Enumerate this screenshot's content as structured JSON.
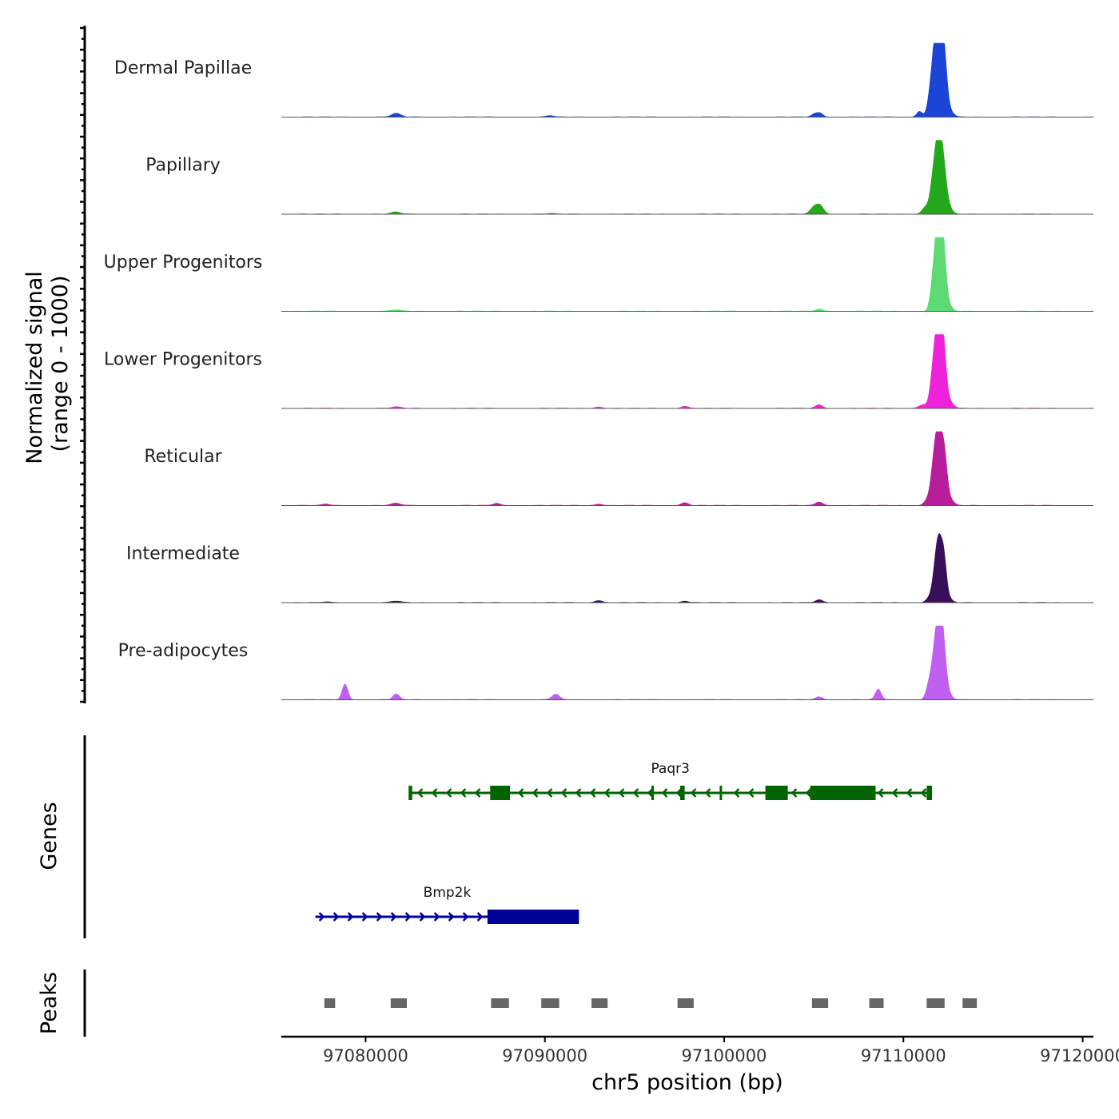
{
  "chart_data": {
    "type": "genome-browser-coverage",
    "chromosome": "chr5",
    "xlim": [
      97075300,
      97120600
    ],
    "xlabel": "chr5 position (bp)",
    "xticks": [
      97080000,
      97090000,
      97100000,
      97110000,
      97120000
    ],
    "xtick_labels": [
      "97080000",
      "97090000",
      "97100000",
      "97110000",
      "97120000"
    ],
    "ylabel_line1": "Normalized signal",
    "ylabel_line2": "(range 0 - 1000)",
    "genes_label": "Genes",
    "peaks_label": "Peaks",
    "tracks": [
      {
        "name": "Dermal Papillae",
        "color": "#1a45d6",
        "peaks": [
          [
            97081700,
            0.05,
            260
          ],
          [
            97090300,
            0.02,
            200
          ],
          [
            97105100,
            0.05,
            200
          ],
          [
            97105400,
            0.04,
            150
          ],
          [
            97110900,
            0.08,
            160
          ],
          [
            97111500,
            0.12,
            160
          ],
          [
            97111750,
            0.75,
            220
          ],
          [
            97111950,
            0.95,
            170
          ],
          [
            97112250,
            0.9,
            170
          ],
          [
            97112600,
            0.08,
            200
          ]
        ]
      },
      {
        "name": "Papillary",
        "color": "#22a81a",
        "peaks": [
          [
            97081700,
            0.03,
            260
          ],
          [
            97090300,
            0.01,
            200
          ],
          [
            97105000,
            0.09,
            200
          ],
          [
            97105350,
            0.12,
            200
          ],
          [
            97111250,
            0.1,
            200
          ],
          [
            97111700,
            0.55,
            180
          ],
          [
            97111950,
            0.75,
            160
          ],
          [
            97112200,
            0.7,
            180
          ],
          [
            97112500,
            0.1,
            200
          ]
        ]
      },
      {
        "name": "Upper Progenitors",
        "color": "#5cdb74",
        "peaks": [
          [
            97081700,
            0.02,
            260
          ],
          [
            97105300,
            0.03,
            200
          ],
          [
            97111700,
            0.5,
            170
          ],
          [
            97111950,
            1.0,
            160
          ],
          [
            97112200,
            0.9,
            170
          ],
          [
            97112500,
            0.08,
            200
          ]
        ]
      },
      {
        "name": "Lower Progenitors",
        "color": "#ee22d8",
        "peaks": [
          [
            97081700,
            0.02,
            260
          ],
          [
            97093000,
            0.02,
            200
          ],
          [
            97097800,
            0.03,
            200
          ],
          [
            97105300,
            0.05,
            200
          ],
          [
            97111100,
            0.05,
            250
          ],
          [
            97111700,
            0.6,
            180
          ],
          [
            97111950,
            0.92,
            160
          ],
          [
            97112200,
            0.9,
            170
          ],
          [
            97112550,
            0.1,
            220
          ]
        ]
      },
      {
        "name": "Reticular",
        "color": "#b81e9c",
        "peaks": [
          [
            97077800,
            0.02,
            200
          ],
          [
            97081700,
            0.03,
            260
          ],
          [
            97087300,
            0.03,
            200
          ],
          [
            97093000,
            0.02,
            200
          ],
          [
            97097800,
            0.04,
            200
          ],
          [
            97105300,
            0.05,
            200
          ],
          [
            97111400,
            0.1,
            200
          ],
          [
            97111700,
            0.55,
            160
          ],
          [
            97111950,
            0.9,
            150
          ],
          [
            97112250,
            0.8,
            170
          ],
          [
            97112600,
            0.08,
            200
          ]
        ]
      },
      {
        "name": "Intermediate",
        "color": "#3a0f5a",
        "peaks": [
          [
            97077800,
            0.01,
            200
          ],
          [
            97081700,
            0.02,
            260
          ],
          [
            97093000,
            0.03,
            200
          ],
          [
            97097800,
            0.02,
            200
          ],
          [
            97105300,
            0.04,
            200
          ],
          [
            97111500,
            0.08,
            200
          ],
          [
            97111800,
            0.45,
            160
          ],
          [
            97112000,
            0.62,
            150
          ],
          [
            97112250,
            0.6,
            150
          ],
          [
            97112500,
            0.06,
            200
          ]
        ]
      },
      {
        "name": "Pre-adipocytes",
        "color": "#c15ff0",
        "peaks": [
          [
            97078850,
            0.22,
            160
          ],
          [
            97081700,
            0.08,
            180
          ],
          [
            97090600,
            0.08,
            200
          ],
          [
            97105300,
            0.04,
            200
          ],
          [
            97108600,
            0.15,
            160
          ],
          [
            97111400,
            0.15,
            160
          ],
          [
            97111700,
            0.5,
            180
          ],
          [
            97111950,
            0.88,
            160
          ],
          [
            97112200,
            0.8,
            170
          ],
          [
            97112500,
            0.08,
            200
          ]
        ]
      }
    ],
    "genes": [
      {
        "name": "Paqr3",
        "color": "#006400",
        "strand": "-",
        "start": 97082500,
        "end": 97111500,
        "exons": [
          [
            97082400,
            97082600
          ],
          [
            97086950,
            97088050
          ],
          [
            97095950,
            97096050
          ],
          [
            97097550,
            97097800
          ],
          [
            97099750,
            97099850
          ],
          [
            97102300,
            97103550
          ],
          [
            97104800,
            97108450
          ],
          [
            97111300,
            97111600
          ]
        ]
      },
      {
        "name": "Bmp2k",
        "color": "#000099",
        "strand": "+",
        "start": 97077200,
        "end": 97091900,
        "exons": [
          [
            97086800,
            97091900
          ]
        ]
      }
    ],
    "peaks": [
      [
        97077700,
        97078300
      ],
      [
        97081400,
        97082300
      ],
      [
        97087000,
        97088000
      ],
      [
        97089800,
        97090800
      ],
      [
        97092600,
        97093500
      ],
      [
        97097400,
        97098300
      ],
      [
        97104900,
        97105800
      ],
      [
        97108100,
        97108900
      ],
      [
        97111300,
        97112300
      ],
      [
        97113300,
        97114100
      ]
    ]
  }
}
